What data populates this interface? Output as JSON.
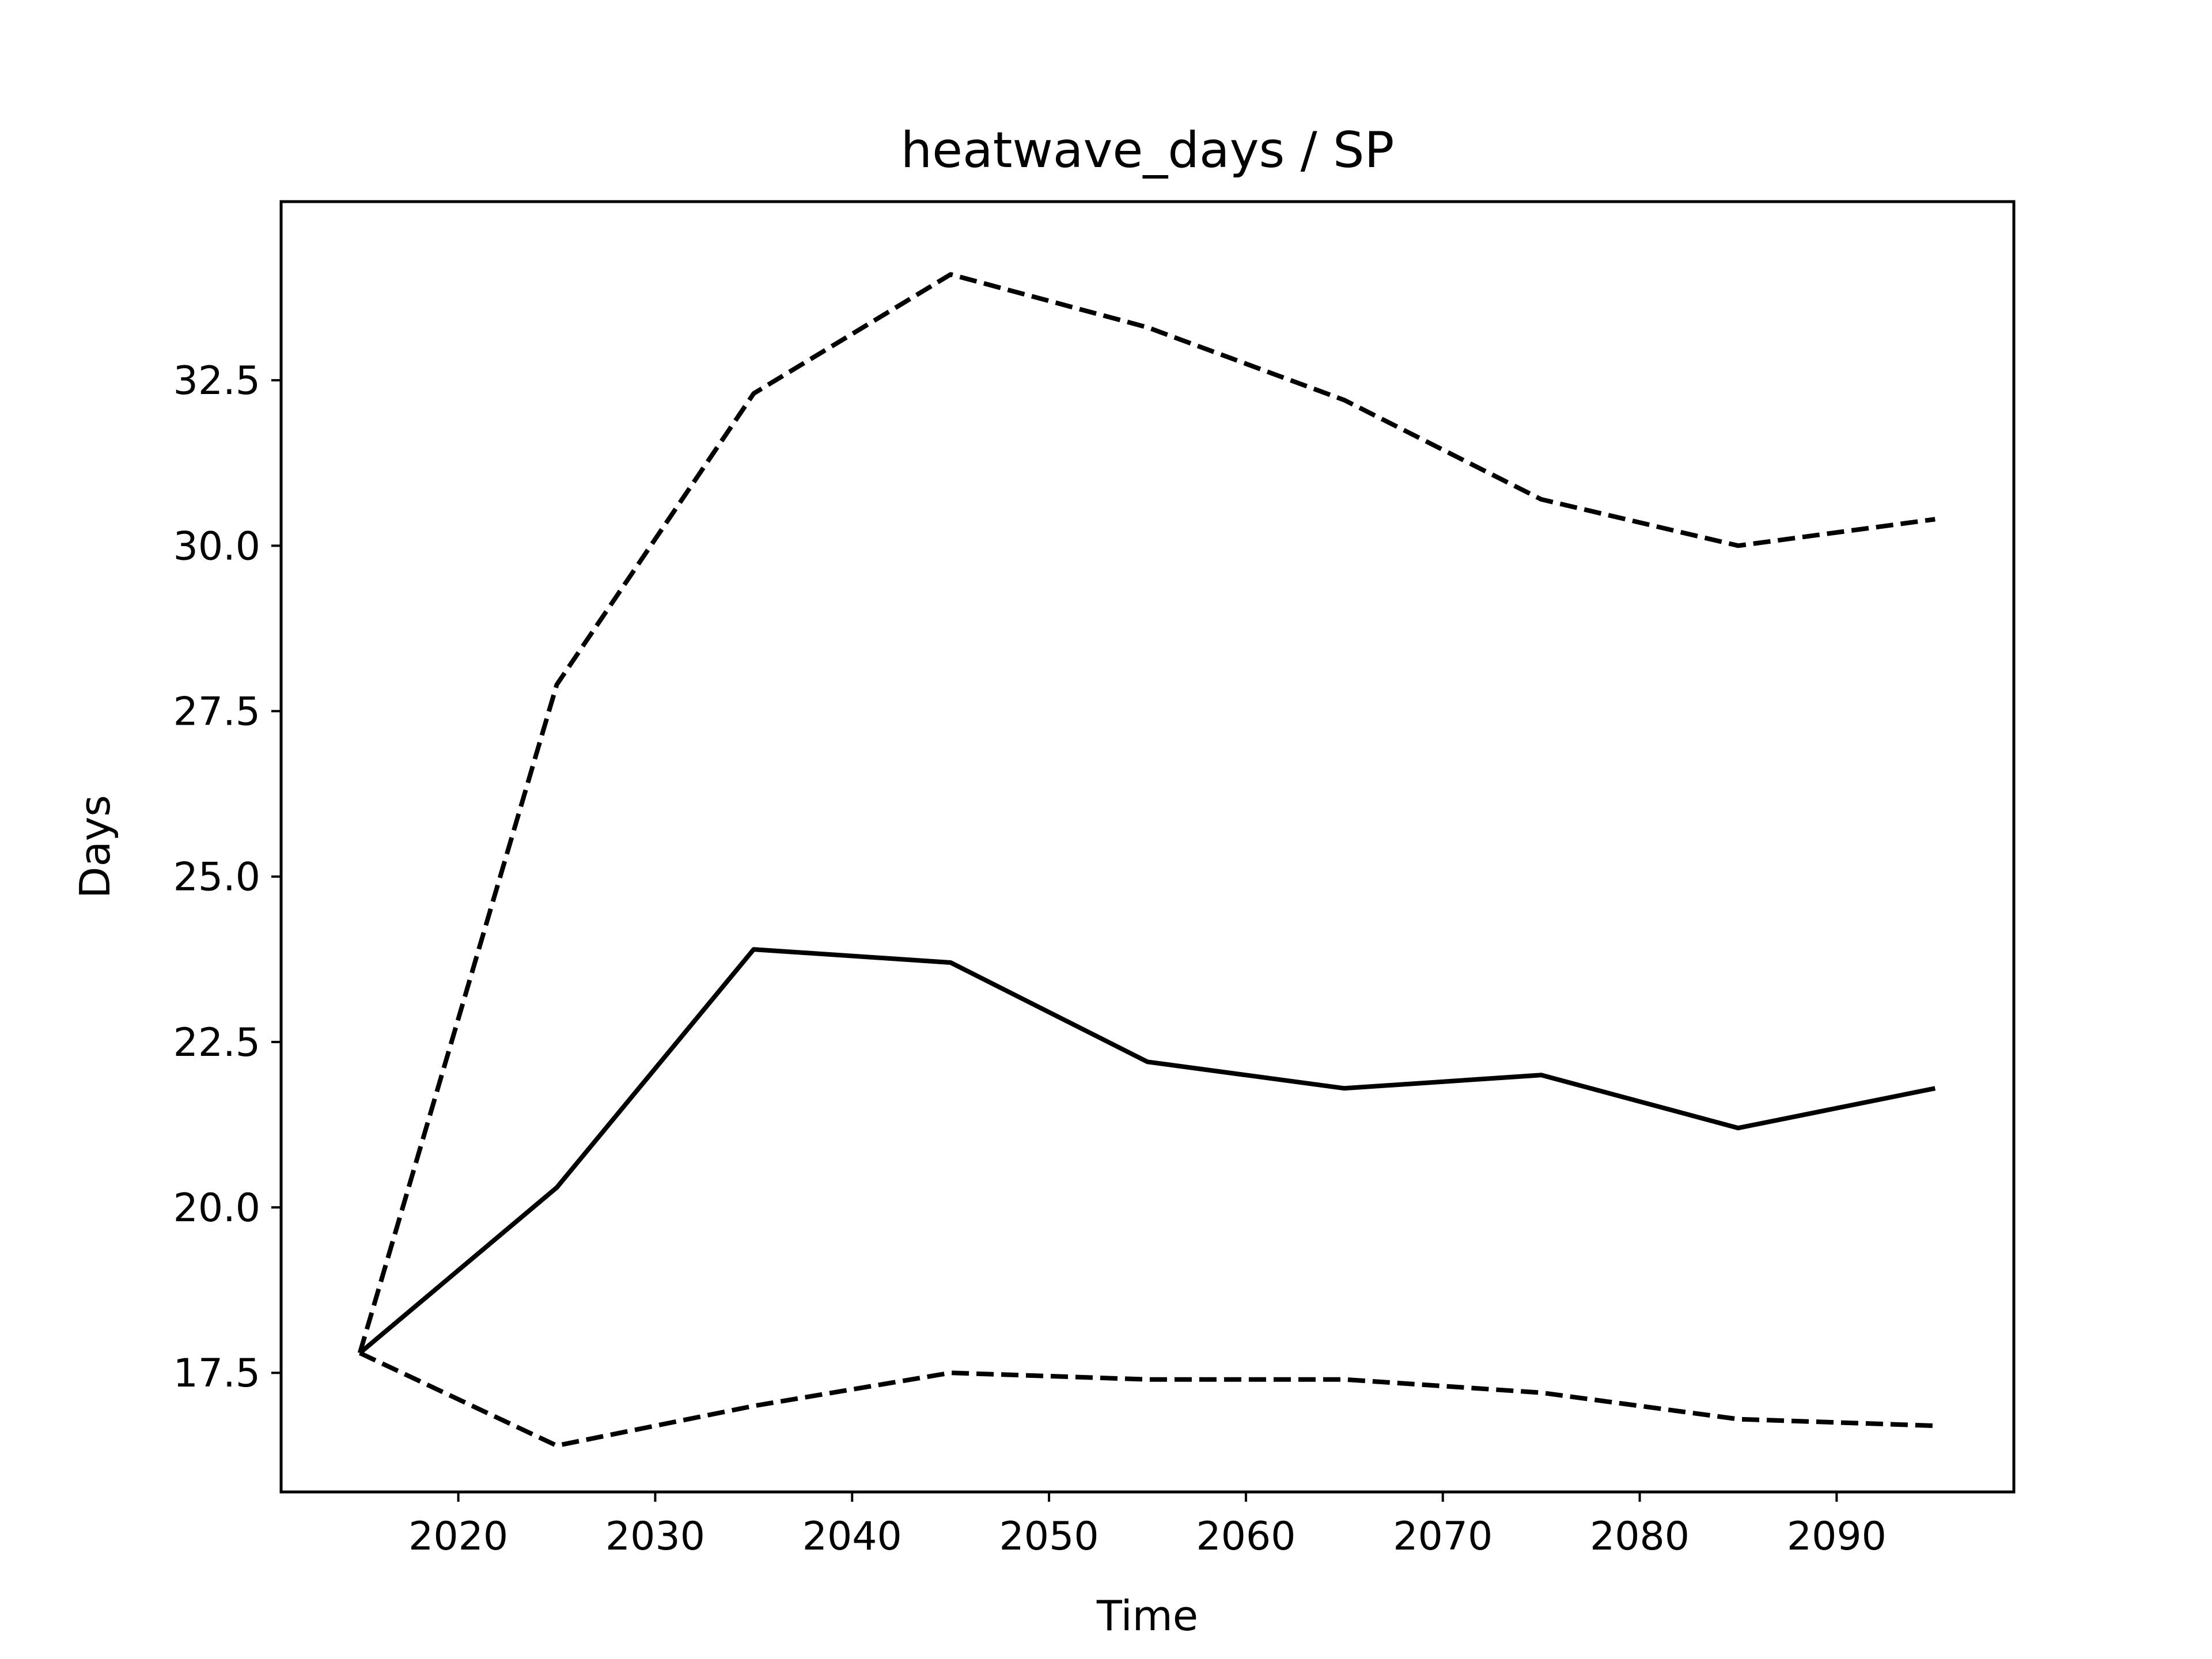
{
  "chart_data": {
    "type": "line",
    "title": "heatwave_days / SP",
    "xlabel": "Time",
    "ylabel": "Days",
    "x": [
      2015,
      2025,
      2035,
      2045,
      2055,
      2065,
      2075,
      2085,
      2095
    ],
    "xlim": [
      2011,
      2099
    ],
    "ylim": [
      15.7,
      35.2
    ],
    "xticks": [
      2020,
      2030,
      2040,
      2050,
      2060,
      2070,
      2080,
      2090
    ],
    "xtick_labels": [
      "2020",
      "2030",
      "2040",
      "2050",
      "2060",
      "2070",
      "2080",
      "2090"
    ],
    "yticks": [
      17.5,
      20.0,
      22.5,
      25.0,
      27.5,
      30.0,
      32.5
    ],
    "ytick_labels": [
      "17.5",
      "20.0",
      "22.5",
      "25.0",
      "27.5",
      "30.0",
      "32.5"
    ],
    "grid": false,
    "color": "#000000",
    "series": [
      {
        "style": "dashed",
        "values": [
          17.8,
          27.9,
          32.3,
          34.1,
          33.3,
          32.2,
          30.7,
          30.0,
          30.4
        ]
      },
      {
        "style": "solid",
        "values": [
          17.8,
          20.3,
          23.9,
          23.7,
          22.2,
          21.8,
          22.0,
          21.2,
          21.8
        ]
      },
      {
        "style": "dashed",
        "values": [
          17.8,
          16.4,
          17.0,
          17.5,
          17.4,
          17.4,
          17.2,
          16.8,
          16.7
        ]
      }
    ]
  }
}
